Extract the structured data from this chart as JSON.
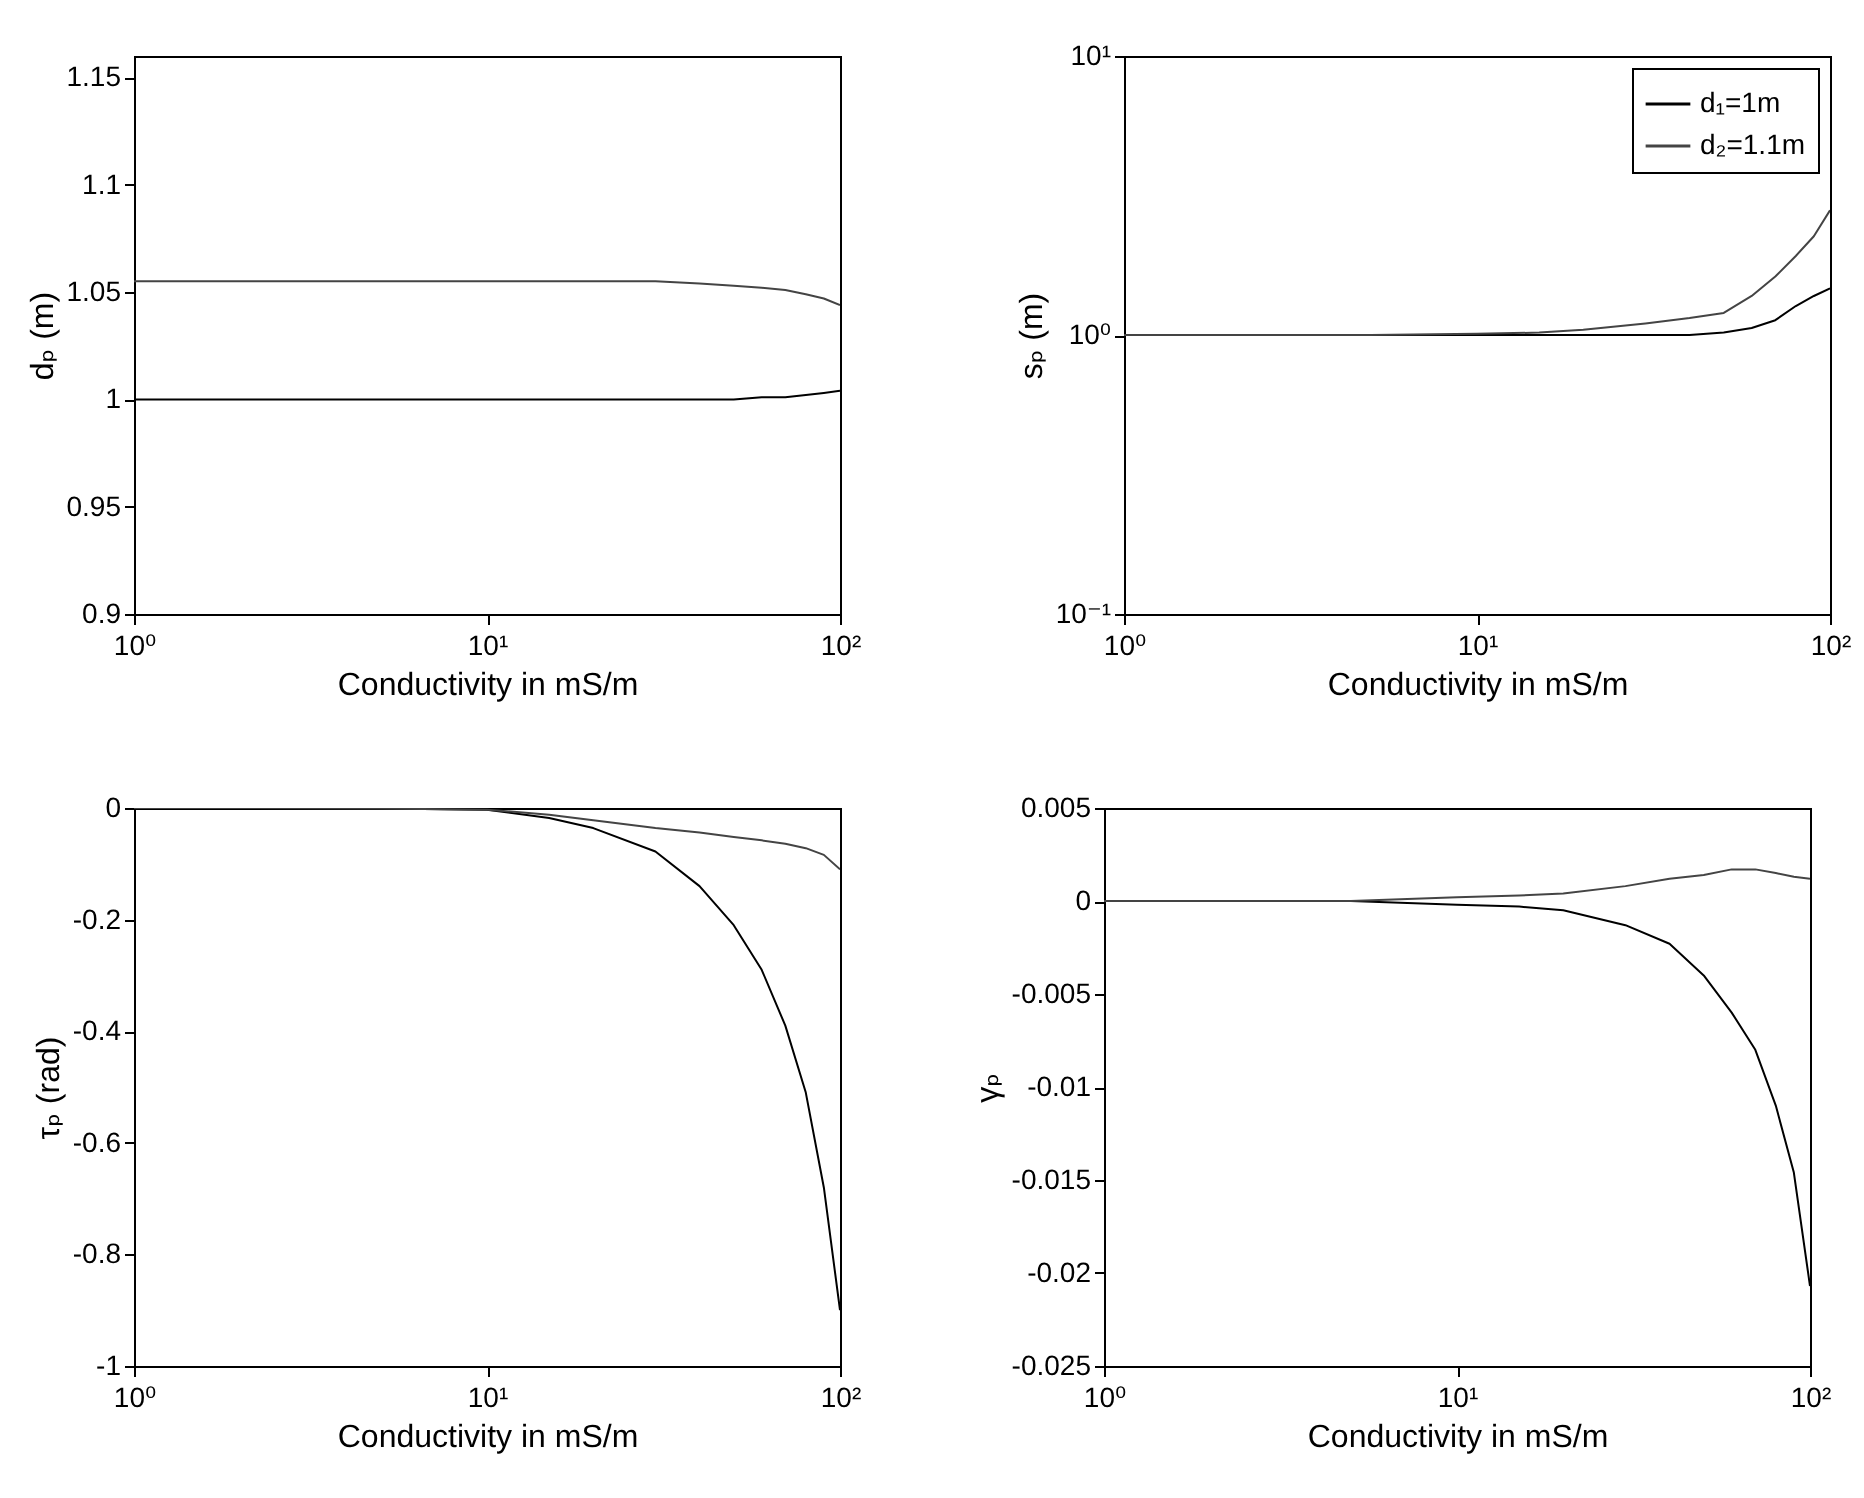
{
  "chart_data": [
    {
      "type": "line",
      "ylabel": "dₚ (m)",
      "xlabel": "Conductivity in mS/m",
      "log": "x",
      "xlim": [
        1,
        100
      ],
      "xticks": [
        {
          "value": 1,
          "label": "10⁰"
        },
        {
          "value": 10,
          "label": "10¹"
        },
        {
          "value": 100,
          "label": "10²"
        }
      ],
      "ylim": [
        0.9,
        1.16
      ],
      "yticks": [
        0.9,
        0.95,
        1,
        1.05,
        1.1,
        1.15
      ],
      "x": [
        1,
        2,
        5,
        10,
        15,
        20,
        30,
        40,
        50,
        60,
        70,
        80,
        90,
        100
      ],
      "series": [
        {
          "color": "#000000",
          "values": [
            1,
            1,
            1,
            1,
            1,
            1,
            1,
            1,
            1,
            1.001,
            1.001,
            1.002,
            1.003,
            1.004
          ]
        },
        {
          "color": "#444444",
          "values": [
            1.055,
            1.055,
            1.055,
            1.055,
            1.055,
            1.055,
            1.055,
            1.054,
            1.053,
            1.052,
            1.051,
            1.049,
            1.047,
            1.044
          ]
        }
      ]
    },
    {
      "type": "line",
      "ylabel": "sₚ (m)",
      "xlabel": "Conductivity in mS/m",
      "log": "xy",
      "legend": "top right",
      "xlim": [
        1,
        100
      ],
      "xticks": [
        {
          "value": 1,
          "label": "10⁰"
        },
        {
          "value": 10,
          "label": "10¹"
        },
        {
          "value": 100,
          "label": "10²"
        }
      ],
      "ylim": [
        0.1,
        10
      ],
      "yticks": [
        {
          "value": 0.1,
          "label": "10⁻¹"
        },
        {
          "value": 1,
          "label": "10⁰"
        },
        {
          "value": 10,
          "label": "10¹"
        }
      ],
      "x": [
        1,
        2,
        5,
        10,
        15,
        20,
        30,
        40,
        50,
        60,
        70,
        80,
        90,
        100
      ],
      "series": [
        {
          "name": "d₁=1m",
          "color": "#000000",
          "values": [
            1,
            1,
            1,
            1,
            1,
            1,
            1,
            1,
            1.02,
            1.06,
            1.13,
            1.27,
            1.38,
            1.47
          ]
        },
        {
          "name": "d₂=1.1m",
          "color": "#444444",
          "values": [
            1,
            1,
            1,
            1.01,
            1.02,
            1.045,
            1.1,
            1.15,
            1.2,
            1.38,
            1.62,
            1.92,
            2.26,
            2.8
          ]
        }
      ]
    },
    {
      "type": "line",
      "ylabel": "τₚ (rad)",
      "xlabel": "Conductivity in mS/m",
      "log": "x",
      "xlim": [
        1,
        100
      ],
      "xticks": [
        {
          "value": 1,
          "label": "10⁰"
        },
        {
          "value": 10,
          "label": "10¹"
        },
        {
          "value": 100,
          "label": "10²"
        }
      ],
      "ylim": [
        -1,
        0
      ],
      "yticks": [
        -1,
        -0.8,
        -0.6,
        -0.4,
        -0.2,
        0
      ],
      "x": [
        1,
        2,
        5,
        10,
        15,
        20,
        30,
        40,
        50,
        60,
        70,
        80,
        90,
        100
      ],
      "series": [
        {
          "color": "#000000",
          "values": [
            0,
            0,
            -0.001,
            -0.003,
            -0.018,
            -0.036,
            -0.078,
            -0.14,
            -0.21,
            -0.29,
            -0.39,
            -0.51,
            -0.68,
            -0.9
          ]
        },
        {
          "color": "#444444",
          "values": [
            0,
            0,
            -0.001,
            -0.003,
            -0.012,
            -0.022,
            -0.036,
            -0.044,
            -0.052,
            -0.058,
            -0.064,
            -0.072,
            -0.084,
            -0.11
          ]
        }
      ]
    },
    {
      "type": "line",
      "ylabel": "γₚ",
      "xlabel": "Conductivity in mS/m",
      "log": "x",
      "xlim": [
        1,
        100
      ],
      "xticks": [
        {
          "value": 1,
          "label": "10⁰"
        },
        {
          "value": 10,
          "label": "10¹"
        },
        {
          "value": 100,
          "label": "10²"
        }
      ],
      "ylim": [
        -0.025,
        0.005
      ],
      "yticks": [
        -0.025,
        -0.02,
        -0.015,
        -0.01,
        -0.005,
        0,
        0.005
      ],
      "x": [
        1,
        2,
        5,
        10,
        15,
        20,
        30,
        40,
        50,
        60,
        70,
        80,
        90,
        100
      ],
      "series": [
        {
          "color": "#000000",
          "values": [
            0,
            0,
            0,
            -0.0002,
            -0.0003,
            -0.0005,
            -0.0013,
            -0.0023,
            -0.004,
            -0.006,
            -0.008,
            -0.011,
            -0.0146,
            -0.0207
          ]
        },
        {
          "color": "#444444",
          "values": [
            0,
            0,
            0,
            0.0002,
            0.0003,
            0.0004,
            0.0008,
            0.0012,
            0.0014,
            0.0017,
            0.0017,
            0.0015,
            0.0013,
            0.0012
          ]
        }
      ]
    }
  ]
}
